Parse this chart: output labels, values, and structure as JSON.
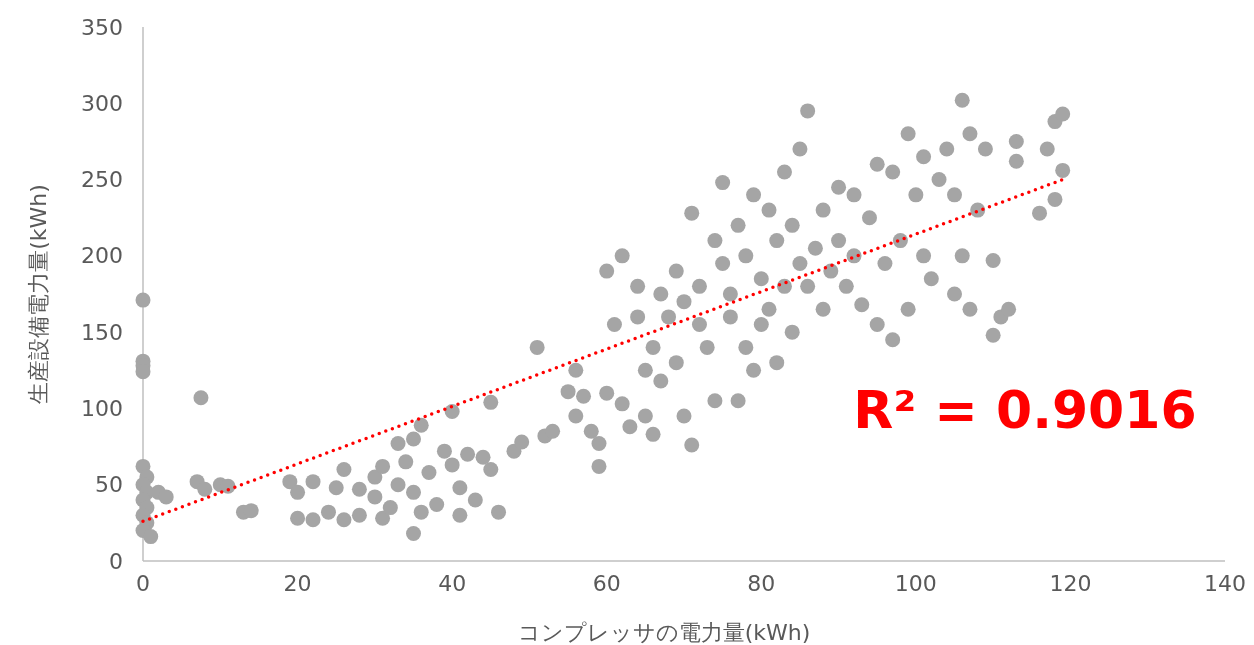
{
  "chart_data": {
    "type": "scatter",
    "xlabel": "コンプレッサの電力量(kWh)",
    "ylabel": "生産設備電力量(kWh)",
    "xlim": [
      0,
      140
    ],
    "xticks": [
      0,
      20,
      40,
      60,
      80,
      100,
      120,
      140
    ],
    "ylim": [
      0,
      350
    ],
    "yticks": [
      0,
      50,
      100,
      150,
      200,
      250,
      300,
      350
    ],
    "grid": false,
    "annotations": [
      "R² = 0.9016"
    ],
    "series": [
      {
        "color": "#a5a5a5",
        "marker": "circle",
        "x": [
          0,
          0,
          0,
          0,
          0,
          0.5,
          0,
          0.5,
          0,
          0.5,
          0,
          0.5,
          0,
          1,
          2,
          3,
          7.5,
          7,
          8,
          10,
          11,
          13,
          14,
          19,
          20,
          20,
          22,
          22,
          24,
          25,
          26,
          26,
          28,
          28,
          30,
          30,
          31,
          31,
          32,
          33,
          33,
          34,
          35,
          35,
          36,
          35,
          36,
          37,
          38,
          39,
          40,
          40,
          41,
          41,
          42,
          43,
          44,
          45,
          45,
          46,
          48,
          49,
          51,
          52,
          53,
          55,
          56,
          56,
          57,
          58,
          59,
          59,
          60,
          60,
          61,
          62,
          62,
          63,
          64,
          64,
          65,
          65,
          66,
          66,
          67,
          67,
          68,
          69,
          69,
          70,
          70,
          71,
          71,
          72,
          72,
          73,
          74,
          74,
          75,
          75,
          76,
          76,
          77,
          77,
          78,
          78,
          79,
          79,
          80,
          80,
          81,
          81,
          82,
          82,
          83,
          83,
          84,
          84,
          85,
          85,
          86,
          86,
          87,
          88,
          88,
          89,
          90,
          90,
          91,
          92,
          92,
          93,
          94,
          95,
          95,
          96,
          97,
          97,
          98,
          99,
          99,
          100,
          101,
          101,
          102,
          103,
          104,
          105,
          105,
          106,
          106,
          107,
          107,
          108,
          109,
          110,
          110,
          111,
          112,
          113,
          113,
          116,
          117,
          118,
          118,
          119,
          119
        ],
        "values": [
          171,
          131,
          128,
          124,
          62,
          55,
          50,
          45,
          40,
          35,
          30,
          25,
          20,
          16,
          45,
          42,
          107,
          52,
          47,
          50,
          49,
          32,
          33,
          52,
          45,
          28,
          52,
          27,
          32,
          48,
          60,
          27,
          47,
          30,
          55,
          42,
          28,
          62,
          35,
          77,
          50,
          65,
          80,
          45,
          89,
          18,
          32,
          58,
          37,
          72,
          98,
          63,
          48,
          30,
          70,
          40,
          68,
          60,
          104,
          32,
          72,
          78,
          140,
          82,
          85,
          111,
          125,
          95,
          108,
          85,
          77,
          62,
          190,
          110,
          155,
          200,
          103,
          88,
          180,
          160,
          125,
          95,
          140,
          83,
          175,
          118,
          160,
          190,
          130,
          170,
          95,
          228,
          76,
          155,
          180,
          140,
          210,
          105,
          248,
          195,
          160,
          175,
          220,
          105,
          140,
          200,
          240,
          125,
          155,
          185,
          230,
          165,
          210,
          130,
          255,
          180,
          220,
          150,
          270,
          195,
          295,
          180,
          205,
          230,
          165,
          190,
          245,
          210,
          180,
          240,
          200,
          168,
          225,
          260,
          155,
          195,
          255,
          145,
          210,
          280,
          165,
          240,
          265,
          200,
          185,
          250,
          270,
          175,
          240,
          302,
          200,
          280,
          165,
          230,
          270,
          148,
          197,
          160,
          165,
          275,
          262,
          228,
          270,
          288,
          237,
          293,
          256
        ]
      },
      {
        "type": "line",
        "color": "#ff0000",
        "line_style": "dotted",
        "marker": "none",
        "x": [
          0,
          119
        ],
        "values": [
          26,
          250
        ]
      }
    ]
  }
}
